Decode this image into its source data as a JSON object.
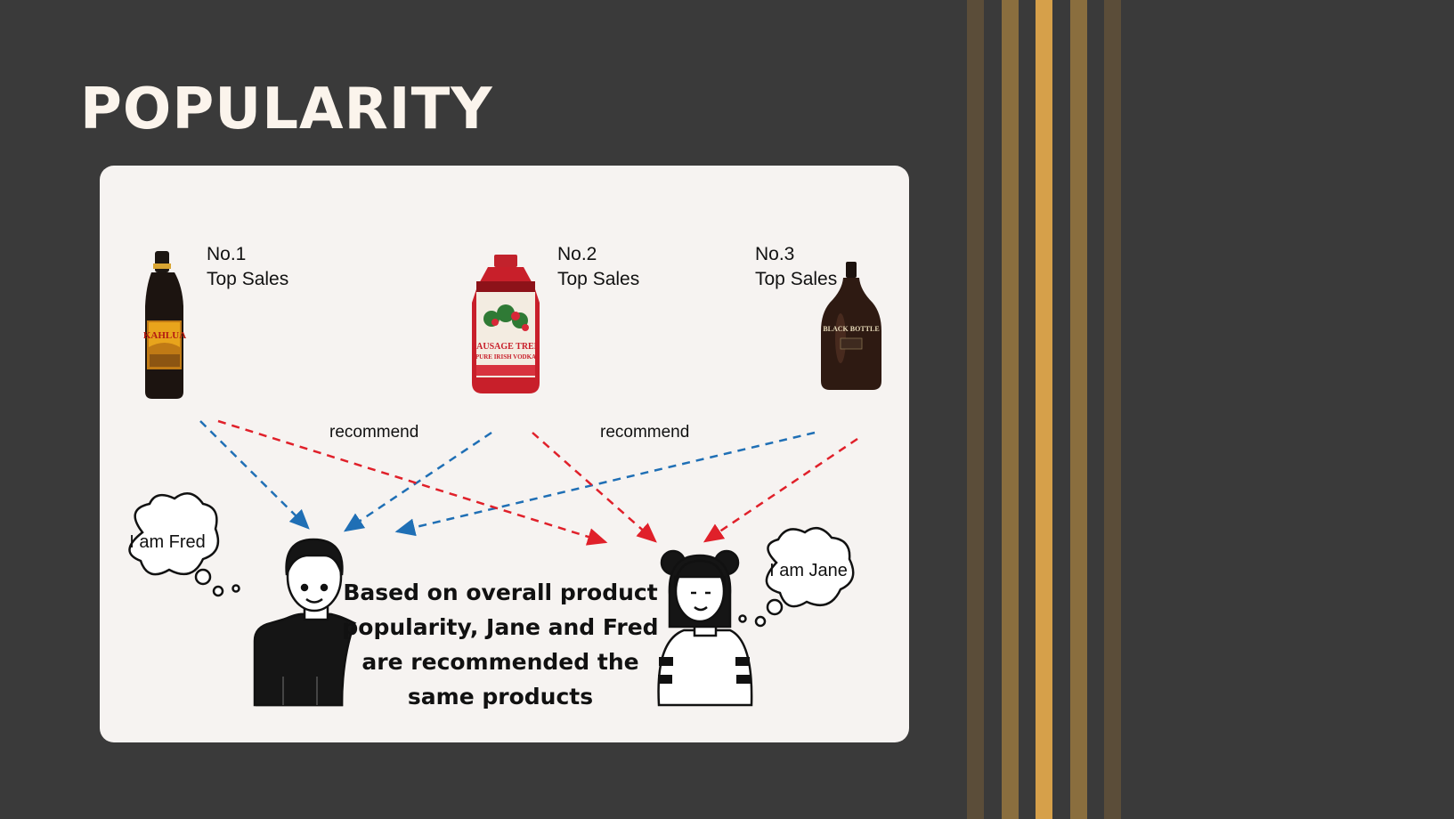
{
  "slide": {
    "title": "POPULARITY",
    "stripe_colors": [
      "#5b4d39",
      "#8a6e3e",
      "#d6a04a",
      "#8a6e3e",
      "#5b4d39"
    ]
  },
  "products": [
    {
      "rank_label": "No.1",
      "caption": "Top Sales",
      "bottle_label": "KAHLUA"
    },
    {
      "rank_label": "No.2",
      "caption": "Top Sales",
      "bottle_label": "SAUSAGE TREE",
      "bottle_sublabel": "PURE IRISH VODKA"
    },
    {
      "rank_label": "No.3",
      "caption": "Top Sales",
      "bottle_label": "BLACK BOTTLE"
    }
  ],
  "recommend_labels": [
    "recommend",
    "recommend"
  ],
  "people": {
    "fred": {
      "thought": "I am Fred"
    },
    "jane": {
      "thought": "I am Jane"
    }
  },
  "summary": "Based on overall product popularity, Jane and Fred are recommended the same products",
  "colors": {
    "arrow_blue": "#1f6fb5",
    "arrow_red": "#e0202a"
  }
}
